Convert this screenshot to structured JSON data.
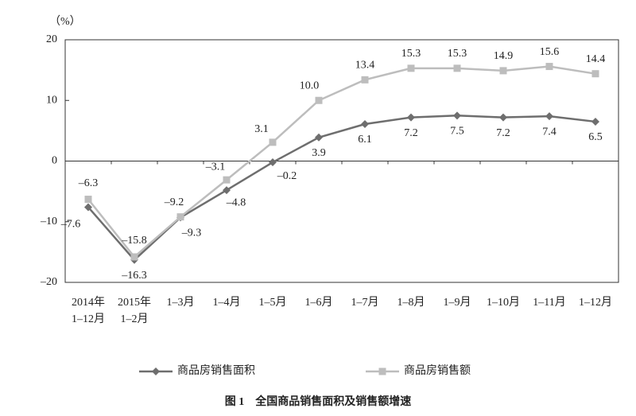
{
  "chart_data": {
    "type": "line",
    "title": "图 1　全国商品销售面积及销售额增速",
    "y_unit": "（%）",
    "categories": [
      "2014年\n1–12月",
      "2015年\n1–2月",
      "1–3月",
      "1–4月",
      "1–5月",
      "1–6月",
      "1–7月",
      "1–8月",
      "1–9月",
      "1–10月",
      "1–11月",
      "1–12月"
    ],
    "series": [
      {
        "name": "商品房销售面积",
        "color": "#6e6e6e",
        "marker": "diamond",
        "values": [
          -7.6,
          -16.3,
          -9.3,
          -4.8,
          -0.2,
          3.9,
          6.1,
          7.2,
          7.5,
          7.2,
          7.4,
          6.5
        ],
        "value_labels": [
          "–7.6",
          "–16.3",
          "–9.3",
          "–4.8",
          "–0.2",
          "3.9",
          "6.1",
          "7.2",
          "7.5",
          "7.2",
          "7.4",
          "6.5"
        ]
      },
      {
        "name": "商品房销售额",
        "color": "#bdbdbd",
        "marker": "square",
        "values": [
          -6.3,
          -15.8,
          -9.2,
          -3.1,
          3.1,
          10.0,
          13.4,
          15.3,
          15.3,
          14.9,
          15.6,
          14.4
        ],
        "value_labels": [
          "–6.3",
          "–15.8",
          "–9.2",
          "–3.1",
          "3.1",
          "10.0",
          "13.4",
          "15.3",
          "15.3",
          "14.9",
          "15.6",
          "14.4"
        ]
      }
    ],
    "ylim": [
      -20,
      20
    ],
    "yticks": [
      {
        "value": -20,
        "label": "–20"
      },
      {
        "value": -10,
        "label": "–10"
      },
      0,
      10,
      20
    ],
    "legend": "bottom"
  }
}
